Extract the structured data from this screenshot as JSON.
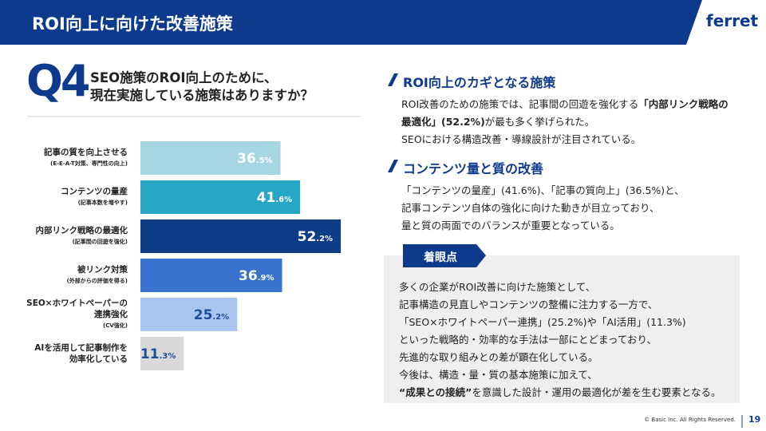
{
  "header": {
    "title": "ROI向上に向けた改善施策",
    "logo": "ferret"
  },
  "question": {
    "number": "Q4",
    "lines": [
      "SEO施策のROI向上のために、",
      "現在実施している施策はありますか？"
    ]
  },
  "chart_data": {
    "type": "bar",
    "orientation": "horizontal",
    "categories": [
      "記事の質を向上させる",
      "コンテンツの量産",
      "内部リンク戦略の最適化",
      "被リンク対策",
      "SEO×ホワイトペーパーの\n連携強化",
      "AIを活用して記事制作を\n効率化している"
    ],
    "category_notes": [
      "(E-E-A-T対策、専門性の向上)",
      "(記事本数を増やす)",
      "(記事間の回遊を強化)",
      "(外部からの評価を得る)",
      "(CV強化)",
      null
    ],
    "values": [
      36.5,
      41.6,
      52.2,
      36.9,
      25.2,
      11.3
    ],
    "value_labels": [
      "36.5%",
      "41.6%",
      "52.2%",
      "36.9%",
      "25.2%",
      "11.3%"
    ],
    "colors": [
      "#a6d6e4",
      "#27a6c6",
      "#0c3d86",
      "#3a72cf",
      "#a8c5ef",
      "#d9d9d9"
    ],
    "label_colors": [
      "#ffffff",
      "#ffffff",
      "#ffffff",
      "#ffffff",
      "#1f4f9a",
      "#1f4f9a"
    ]
  },
  "sections": [
    {
      "title": "ROI向上のカギとなる施策",
      "lines": [
        [
          "ROI改善のための施策では、記事間の回遊を強化する",
          "「内部リンク戦略の"
        ],
        [
          "最適化」(52.2%)",
          "が最も多く挙げられた。"
        ],
        [
          "SEOにおける構造改善・導線設計が注目されている。"
        ]
      ]
    },
    {
      "title": "コンテンツ量と質の改善",
      "lines": [
        [
          "「コンテンツの量産」(41.6%)、「記事の質向上」(36.5%)と、"
        ],
        [
          "記事コンテンツ自体の強化に向けた動きが目立っており、"
        ],
        [
          "量と質の両面でのバランスが重要となっている。"
        ]
      ]
    }
  ],
  "focus": {
    "label": "着眼点",
    "lines": [
      [
        "多くの企業がROI改善に向けた施策として、"
      ],
      [
        "記事構造の見直しやコンテンツの整備に注力する一方で、"
      ],
      [
        "「SEO×ホワイトペーパー連携」(25.2%)や「AI活用」(11.3%)"
      ],
      [
        "といった戦略的・効率的な手法は一部にとどまっており、"
      ],
      [
        "先進的な取り組みとの差が顕在化している。"
      ],
      [
        "今後は、構造・量・質の基本施策に加えて、"
      ],
      [
        "“成果との接続”",
        "を意識した設計・運用の最適化が差を生む要素となる。"
      ]
    ]
  },
  "footer": {
    "copyright": "© Basic Inc. All Rights Reserved.",
    "page": "19"
  }
}
